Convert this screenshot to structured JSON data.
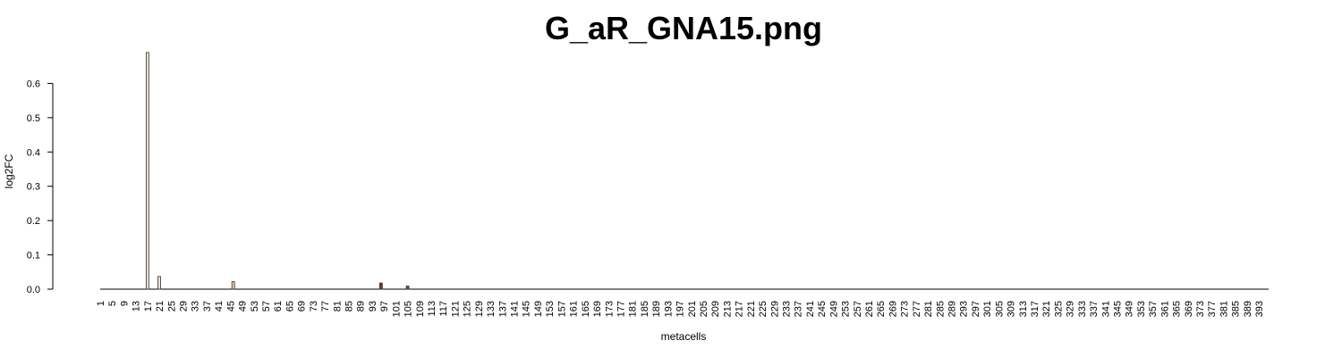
{
  "chart_data": {
    "type": "bar",
    "title": "G_aR_GNA15.png",
    "xlabel": "metacells",
    "ylabel": "log2FC",
    "ylim": [
      0,
      0.7
    ],
    "yticks": [
      "0.0",
      "0.1",
      "0.2",
      "0.3",
      "0.4",
      "0.5",
      "0.6"
    ],
    "n_categories": 396,
    "x_tick_labels": [
      "1",
      "5",
      "9",
      "13",
      "17",
      "21",
      "25",
      "29",
      "33",
      "37",
      "41",
      "45",
      "49",
      "53",
      "57",
      "61",
      "65",
      "69",
      "73",
      "77",
      "81",
      "85",
      "89",
      "93",
      "97",
      "101",
      "105",
      "109",
      "113",
      "117",
      "121",
      "125",
      "129",
      "133",
      "137",
      "141",
      "145",
      "149",
      "153",
      "157",
      "161",
      "165",
      "169",
      "173",
      "177",
      "181",
      "185",
      "189",
      "193",
      "197",
      "201",
      "205",
      "209",
      "213",
      "217",
      "221",
      "225",
      "229",
      "233",
      "237",
      "241",
      "245",
      "249",
      "253",
      "257",
      "261",
      "265",
      "269",
      "273",
      "277",
      "281",
      "285",
      "289",
      "293",
      "297",
      "301",
      "305",
      "309",
      "313",
      "317",
      "321",
      "325",
      "329",
      "333",
      "337",
      "341",
      "345",
      "349",
      "353",
      "357",
      "361",
      "365",
      "369",
      "373",
      "377",
      "381",
      "385",
      "389",
      "393"
    ],
    "nonzero_bars": [
      {
        "metacell": 17,
        "value": 0.69,
        "color": "#ede0cc"
      },
      {
        "metacell": 21,
        "value": 0.037,
        "color": "#ede0cc"
      },
      {
        "metacell": 46,
        "value": 0.022,
        "color": "#e8c8a0"
      },
      {
        "metacell": 96,
        "value": 0.018,
        "color": "#6b3a20"
      },
      {
        "metacell": 105,
        "value": 0.009,
        "color": "#8a4a28"
      }
    ],
    "grid": false,
    "legend": "none"
  }
}
